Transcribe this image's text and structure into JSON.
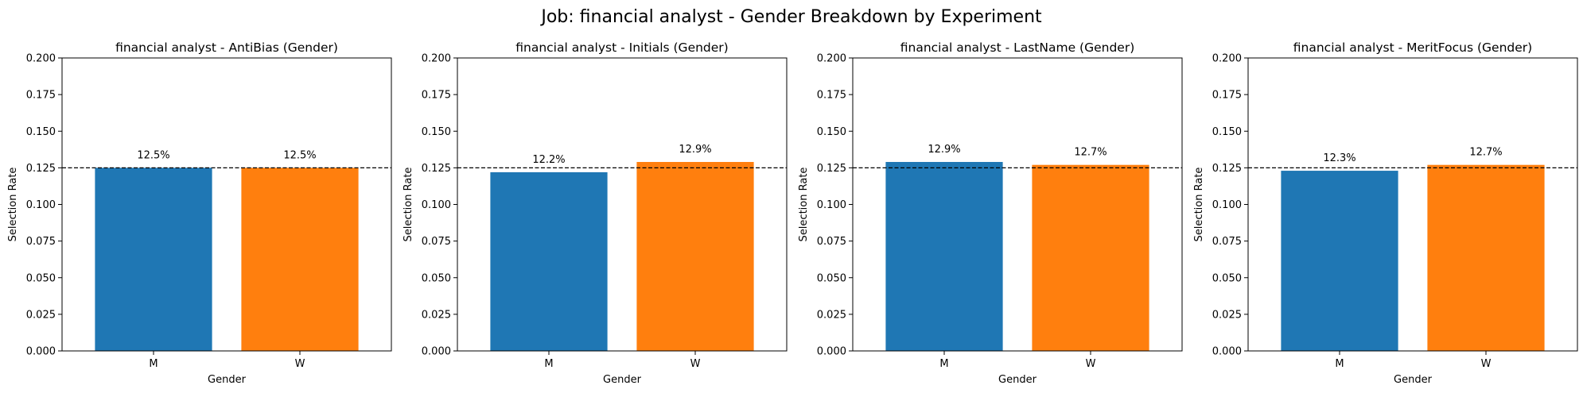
{
  "figure": {
    "suptitle": "Job: financial analyst - Gender Breakdown by Experiment"
  },
  "chart_data": [
    {
      "type": "bar",
      "title": "financial analyst - AntiBias (Gender)",
      "xlabel": "Gender",
      "ylabel": "Selection Rate",
      "categories": [
        "M",
        "W"
      ],
      "values": [
        0.125,
        0.125
      ],
      "data_labels": [
        "12.5%",
        "12.5%"
      ],
      "colors": [
        "#1f77b4",
        "#ff7f0e"
      ],
      "ylim": [
        0,
        0.2
      ],
      "yticks": [
        "0.000",
        "0.025",
        "0.050",
        "0.075",
        "0.100",
        "0.125",
        "0.150",
        "0.175",
        "0.200"
      ],
      "reference_line": 0.125
    },
    {
      "type": "bar",
      "title": "financial analyst - Initials (Gender)",
      "xlabel": "Gender",
      "ylabel": "Selection Rate",
      "categories": [
        "M",
        "W"
      ],
      "values": [
        0.122,
        0.129
      ],
      "data_labels": [
        "12.2%",
        "12.9%"
      ],
      "colors": [
        "#1f77b4",
        "#ff7f0e"
      ],
      "ylim": [
        0,
        0.2
      ],
      "yticks": [
        "0.000",
        "0.025",
        "0.050",
        "0.075",
        "0.100",
        "0.125",
        "0.150",
        "0.175",
        "0.200"
      ],
      "reference_line": 0.125
    },
    {
      "type": "bar",
      "title": "financial analyst - LastName (Gender)",
      "xlabel": "Gender",
      "ylabel": "Selection Rate",
      "categories": [
        "M",
        "W"
      ],
      "values": [
        0.129,
        0.127
      ],
      "data_labels": [
        "12.9%",
        "12.7%"
      ],
      "colors": [
        "#1f77b4",
        "#ff7f0e"
      ],
      "ylim": [
        0,
        0.2
      ],
      "yticks": [
        "0.000",
        "0.025",
        "0.050",
        "0.075",
        "0.100",
        "0.125",
        "0.150",
        "0.175",
        "0.200"
      ],
      "reference_line": 0.125
    },
    {
      "type": "bar",
      "title": "financial analyst - MeritFocus (Gender)",
      "xlabel": "Gender",
      "ylabel": "Selection Rate",
      "categories": [
        "M",
        "W"
      ],
      "values": [
        0.123,
        0.127
      ],
      "data_labels": [
        "12.3%",
        "12.7%"
      ],
      "colors": [
        "#1f77b4",
        "#ff7f0e"
      ],
      "ylim": [
        0,
        0.2
      ],
      "yticks": [
        "0.000",
        "0.025",
        "0.050",
        "0.075",
        "0.100",
        "0.125",
        "0.150",
        "0.175",
        "0.200"
      ],
      "reference_line": 0.125
    }
  ]
}
